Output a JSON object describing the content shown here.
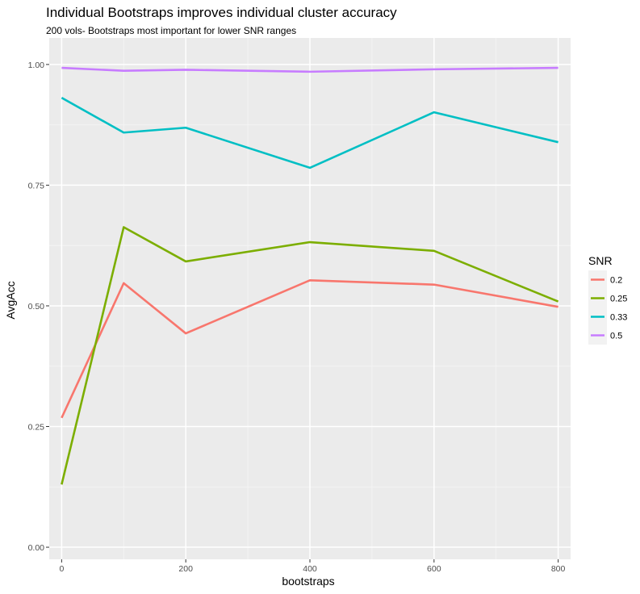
{
  "chart_data": {
    "type": "line",
    "title": "Individual Bootstraps improves individual cluster accuracy",
    "subtitle": "200 vols- Bootstraps most important for lower SNR ranges",
    "xlabel": "bootstraps",
    "ylabel": "AvgAcc",
    "xlim": [
      -20,
      820
    ],
    "ylim": [
      -0.025,
      1.055
    ],
    "x_ticks": [
      0,
      200,
      400,
      600,
      800
    ],
    "x_tick_labels": [
      "0",
      "200",
      "400",
      "600",
      "800"
    ],
    "y_ticks": [
      0,
      0.25,
      0.5,
      0.75,
      1
    ],
    "y_tick_labels": [
      "0.00",
      "0.25",
      "0.50",
      "0.75",
      "1.00"
    ],
    "grid": true,
    "legend": {
      "title": "SNR",
      "position": "right"
    },
    "x": [
      0,
      100,
      200,
      400,
      600,
      800
    ],
    "series": [
      {
        "name": "0.2",
        "color": "#F8766D",
        "values": [
          0.268,
          0.547,
          0.443,
          0.553,
          0.544,
          0.498
        ]
      },
      {
        "name": "0.25",
        "color": "#7CAE00",
        "values": [
          0.13,
          0.663,
          0.592,
          0.632,
          0.614,
          0.509
        ]
      },
      {
        "name": "0.33",
        "color": "#00BFC4",
        "values": [
          0.931,
          0.859,
          0.869,
          0.786,
          0.901,
          0.839
        ]
      },
      {
        "name": "0.5",
        "color": "#C77CFF",
        "values": [
          0.993,
          0.987,
          0.989,
          0.985,
          0.99,
          0.993
        ]
      }
    ]
  }
}
